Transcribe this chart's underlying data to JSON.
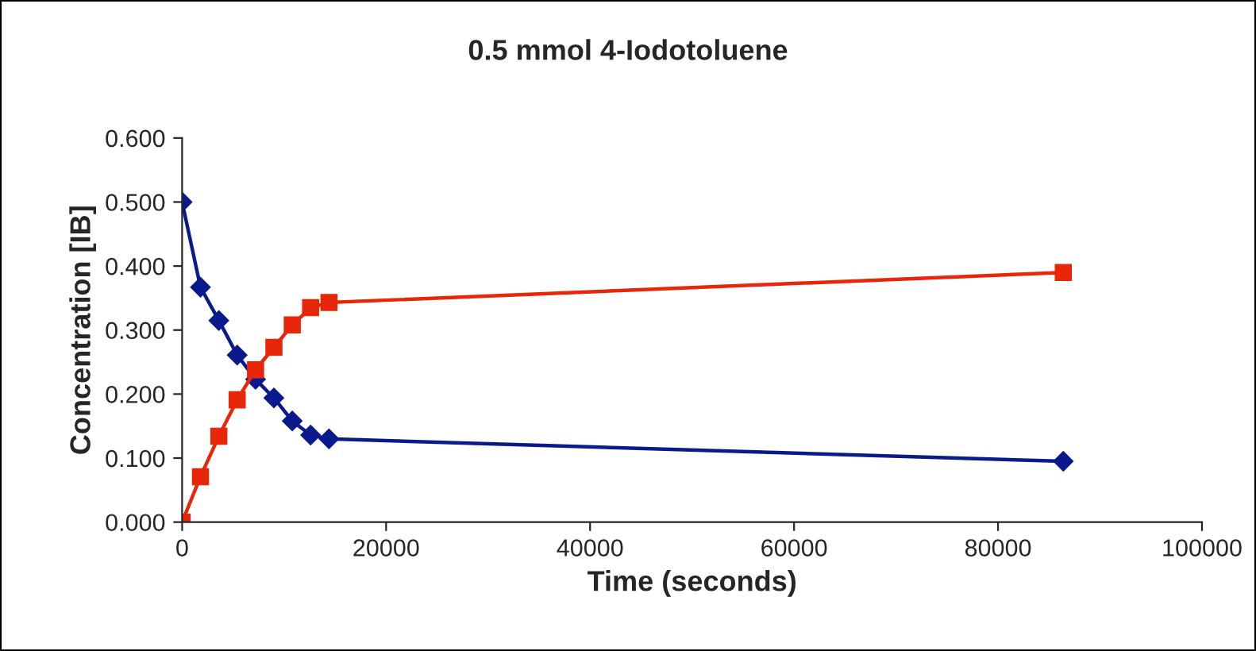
{
  "chart_data": {
    "type": "line",
    "title": "0.5 mmol 4-Iodotoluene",
    "xlabel": "Time (seconds)",
    "ylabel": "Concentration [IB]",
    "series": [
      {
        "color": "#0a1a8c",
        "marker": "diamond",
        "x": [
          0,
          1800,
          3600,
          5400,
          7200,
          9000,
          10800,
          12600,
          14400,
          86400
        ],
        "values": [
          0.5,
          0.367,
          0.315,
          0.261,
          0.223,
          0.194,
          0.158,
          0.136,
          0.13,
          0.095
        ]
      },
      {
        "color": "#e8260a",
        "marker": "square",
        "x": [
          0,
          1800,
          3600,
          5400,
          7200,
          9000,
          10800,
          12600,
          14400,
          86400
        ],
        "values": [
          0.0,
          0.071,
          0.134,
          0.191,
          0.238,
          0.273,
          0.308,
          0.335,
          0.343,
          0.39
        ]
      }
    ],
    "xlim": [
      0,
      100000
    ],
    "xticks": [
      0,
      20000,
      40000,
      60000,
      80000,
      100000
    ],
    "ylim": [
      0,
      0.6
    ],
    "yticks": [
      {
        "value": 0,
        "label": "0.000"
      },
      {
        "value": 0.1,
        "label": "0.100"
      },
      {
        "value": 0.2,
        "label": "0.200"
      },
      {
        "value": 0.3,
        "label": "0.300"
      },
      {
        "value": 0.4,
        "label": "0.400"
      },
      {
        "value": 0.5,
        "label": "0.500"
      },
      {
        "value": 0.6,
        "label": "0.600"
      }
    ],
    "grid": false,
    "legend": false,
    "line_style": "solid"
  }
}
